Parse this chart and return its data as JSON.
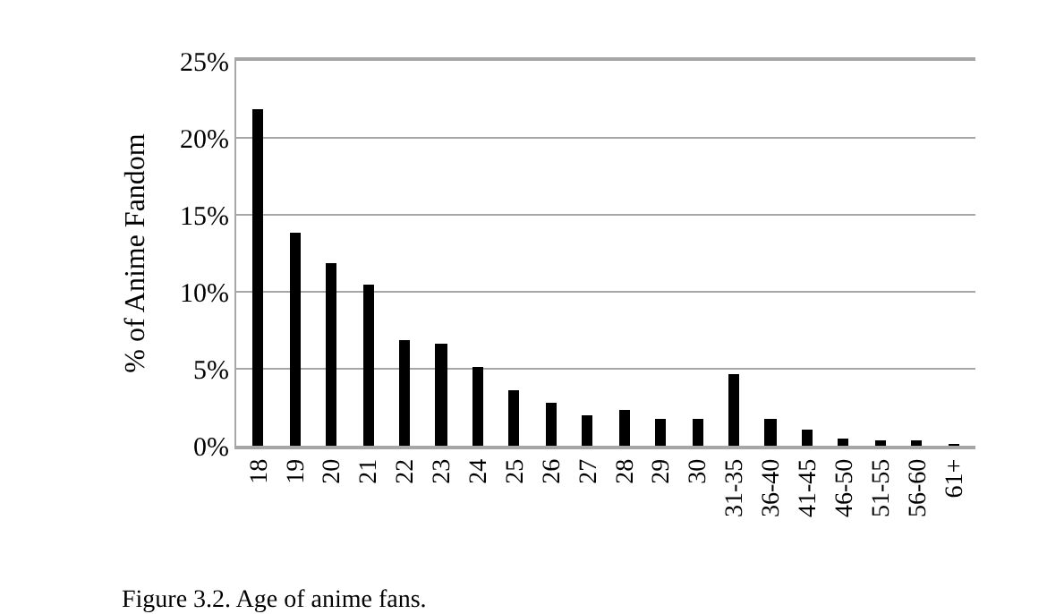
{
  "chart_data": {
    "type": "bar",
    "ylabel": "% of Anime Fandom",
    "categories": [
      "18",
      "19",
      "20",
      "21",
      "22",
      "23",
      "24",
      "25",
      "26",
      "27",
      "28",
      "29",
      "30",
      "31-35",
      "36-40",
      "41-45",
      "46-50",
      "51-55",
      "56-60",
      "61+"
    ],
    "values": [
      21.9,
      13.8,
      11.9,
      10.5,
      6.9,
      6.6,
      5.1,
      3.6,
      2.8,
      2.0,
      2.3,
      1.8,
      1.8,
      4.7,
      1.7,
      1.0,
      0.5,
      0.3,
      0.3,
      0.1
    ],
    "color": "#000000",
    "ylim": [
      0,
      25
    ],
    "yticks": [
      {
        "value": 0,
        "label": "0%"
      },
      {
        "value": 5,
        "label": "5%"
      },
      {
        "value": 10,
        "label": "10%"
      },
      {
        "value": 15,
        "label": "15%"
      },
      {
        "value": 20,
        "label": "20%"
      },
      {
        "value": 25,
        "label": "25%"
      }
    ],
    "grid": "y",
    "annotations": [
      "Figure 3.2. Age of anime fans."
    ]
  }
}
